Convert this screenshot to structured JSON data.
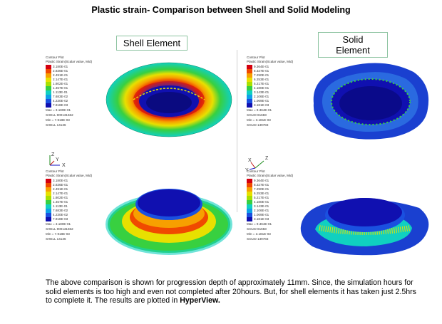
{
  "title": "Plastic strain- Comparison between Shell and Solid Modeling",
  "shell_label": "Shell Element",
  "solid_label": "Solid Element",
  "legends": {
    "shell_top": {
      "header1": "Contour Plot",
      "header2": "Plastic Strain(Scalar value, Mid)",
      "values": [
        "3.180E-01",
        "2.836E-01",
        "2.491E-01",
        "2.147E-01",
        "1.802E-01",
        "1.457E-01",
        "1.113E-01",
        "7.683E-02",
        "4.230E-02",
        "7.918E-03"
      ],
      "max": "Max = 3.180E-01",
      "max_id": "SHELL 900131662",
      "min": "Min = 7.918E-03",
      "min_id": "SHELL 14136"
    },
    "shell_bottom": {
      "header1": "Contour Plot",
      "header2": "Plastic Strain(Scalar value, Mid)",
      "values": [
        "3.180E-01",
        "2.836E-01",
        "2.491E-01",
        "2.147E-01",
        "1.802E-01",
        "1.457E-01",
        "1.113E-01",
        "7.683E-02",
        "4.230E-02",
        "7.918E-03"
      ],
      "max": "Max = 3.180E-01",
      "max_id": "SHELL 900131662",
      "min": "Min = 7.918E-03",
      "min_id": "SHELL 14136"
    },
    "solid_top": {
      "header1": "Contour Plot",
      "header2": "Plastic Strain(Scalar value, Mid)",
      "values": [
        "9.364E-01",
        "8.327E-01",
        "7.290E-01",
        "6.253E-01",
        "5.217E-01",
        "4.180E-01",
        "3.143E-01",
        "2.106E-01",
        "1.069E-01",
        "3.181E-03"
      ],
      "max": "Max = 9.364E-01",
      "max_id": "SOLID 81683",
      "min": "Min = 3.181E-03",
      "min_id": "SOLID 139783"
    },
    "solid_bottom": {
      "header1": "Contour Plot",
      "header2": "Plastic Strain(Scalar value, Mid)",
      "values": [
        "9.364E-01",
        "8.327E-01",
        "7.290E-01",
        "6.253E-01",
        "5.217E-01",
        "4.180E-01",
        "3.143E-01",
        "2.106E-01",
        "1.069E-01",
        "3.181E-03"
      ],
      "max": "Max = 9.364E-01",
      "max_id": "SOLID 81683",
      "min": "Min = 3.181E-03",
      "min_id": "SOLID 139783"
    }
  },
  "legend_colors": [
    "#d4000f",
    "#f04a00",
    "#f7a000",
    "#e8e000",
    "#a8e000",
    "#38d040",
    "#10d0c0",
    "#0ea0e8",
    "#1a50e0",
    "#1010b0"
  ],
  "axis": {
    "x": "X",
    "y": "Y",
    "z": "Z"
  },
  "bottom_text_1": "The above comparison is shown for progression depth of approximately 11mm. Since, the simulation hours for solid elements is too high and even not completed after 20hours. But, for shell elements it has taken just 2.5hrs to complete it. The results are plotted in ",
  "bottom_text_bold": "HyperView."
}
